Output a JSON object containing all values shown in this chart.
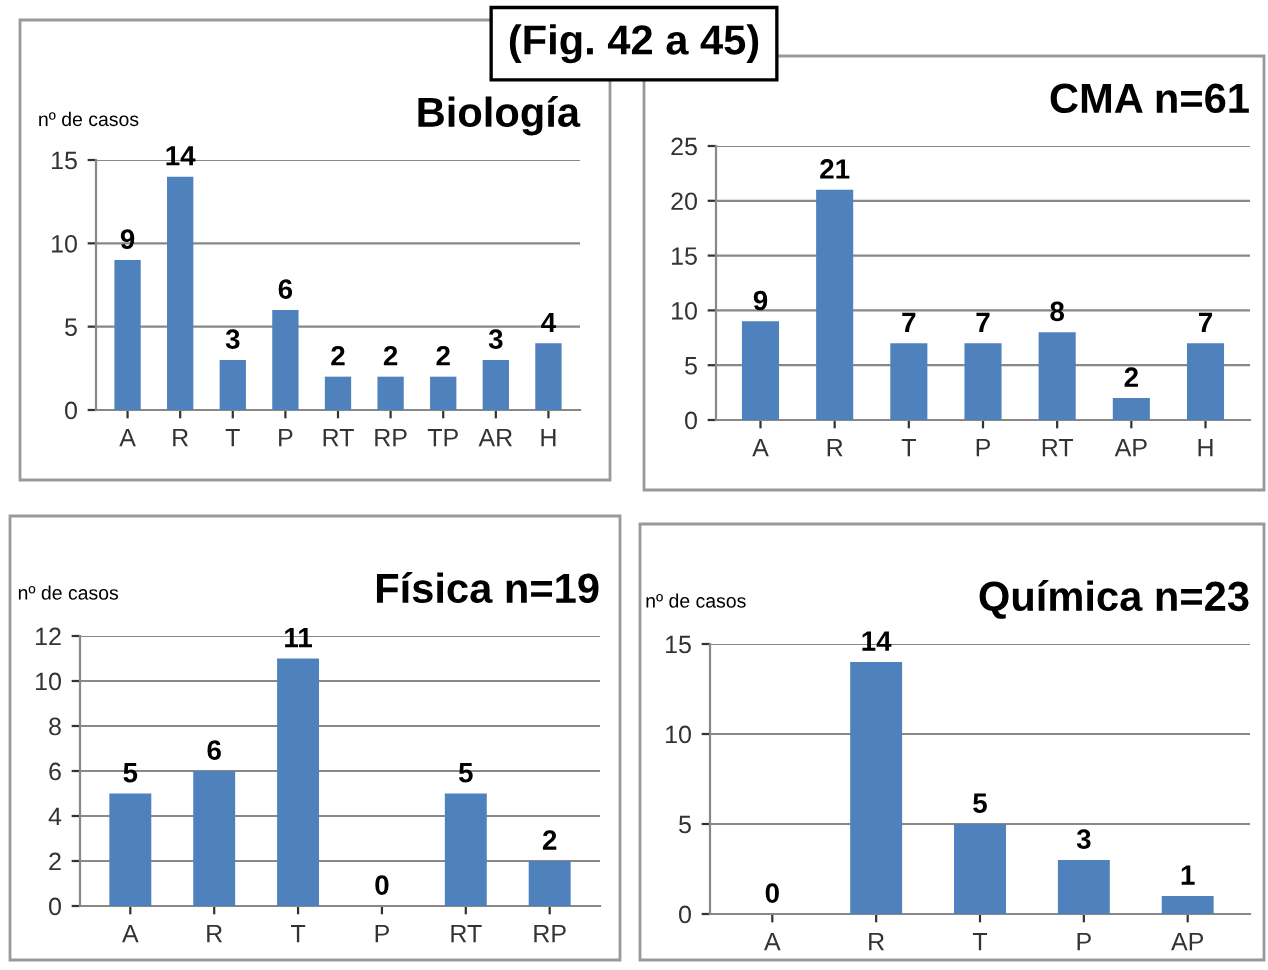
{
  "chart_data": [
    {
      "type": "bar",
      "title": "Biología",
      "ylabel": "nº de casos",
      "annotations": [
        "(Fig. 42 a 45)"
      ],
      "categories": [
        "A",
        "R",
        "T",
        "P",
        "RT",
        "RP",
        "TP",
        "AR",
        "H"
      ],
      "values": [
        9,
        14,
        3,
        6,
        2,
        2,
        2,
        3,
        4
      ],
      "color": "#4f81bd",
      "ylim": [
        0,
        15
      ],
      "yticks": [
        0,
        5,
        10,
        15
      ],
      "grid": "y",
      "data_labels": true
    },
    {
      "type": "bar",
      "title": "CMA n=61",
      "categories": [
        "A",
        "R",
        "T",
        "P",
        "RT",
        "AP",
        "H"
      ],
      "values": [
        9,
        21,
        7,
        7,
        8,
        2,
        7
      ],
      "color": "#4f81bd",
      "ylim": [
        0,
        25
      ],
      "yticks": [
        0,
        5,
        10,
        15,
        20,
        25
      ],
      "grid": "y",
      "data_labels": true
    },
    {
      "type": "bar",
      "title": "Física n=19",
      "ylabel": "nº de casos",
      "categories": [
        "A",
        "R",
        "T",
        "P",
        "RT",
        "RP"
      ],
      "values": [
        5,
        6,
        11,
        0,
        5,
        2
      ],
      "color": "#4f81bd",
      "ylim": [
        0,
        12
      ],
      "yticks": [
        0,
        2,
        4,
        6,
        8,
        10,
        12
      ],
      "grid": "y",
      "data_labels": true
    },
    {
      "type": "bar",
      "title": "Química n=23",
      "ylabel": "nº de casos",
      "categories": [
        "A",
        "R",
        "T",
        "P",
        "AP"
      ],
      "values": [
        0,
        14,
        5,
        3,
        1
      ],
      "color": "#4f81bd",
      "ylim": [
        0,
        15
      ],
      "yticks": [
        0,
        5,
        10,
        15
      ],
      "grid": "y",
      "data_labels": true
    }
  ]
}
